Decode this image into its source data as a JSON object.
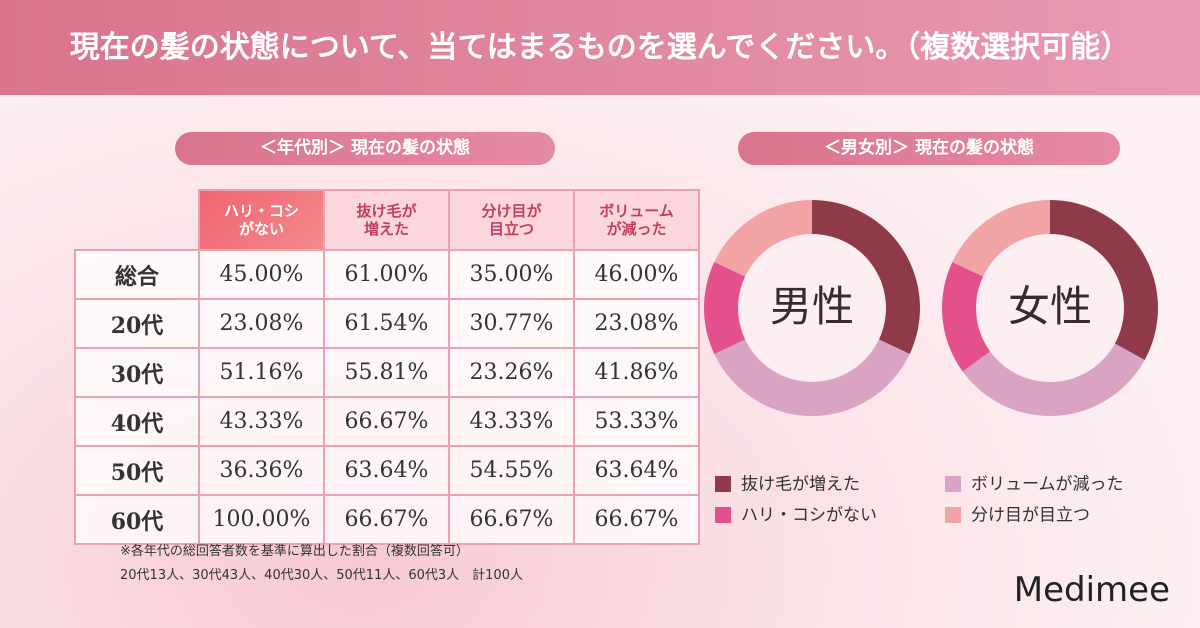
{
  "header": {
    "title": "現在の髪の状態について、当てはまるものを選んでください。（複数選択可能）"
  },
  "table": {
    "title": "＜年代別＞ 現在の髪の状態",
    "columns": [
      "ハリ・コシ\nがない",
      "抜け毛が\n増えた",
      "分け目が\n目立つ",
      "ボリューム\nが減った"
    ],
    "rows": [
      {
        "label": "総合",
        "cells": [
          "45.00%",
          "61.00%",
          "35.00%",
          "46.00%"
        ]
      },
      {
        "label": "20代",
        "cells": [
          "23.08%",
          "61.54%",
          "30.77%",
          "23.08%"
        ]
      },
      {
        "label": "30代",
        "cells": [
          "51.16%",
          "55.81%",
          "23.26%",
          "41.86%"
        ]
      },
      {
        "label": "40代",
        "cells": [
          "43.33%",
          "66.67%",
          "43.33%",
          "53.33%"
        ]
      },
      {
        "label": "50代",
        "cells": [
          "36.36%",
          "63.64%",
          "54.55%",
          "63.64%"
        ]
      },
      {
        "label": "60代",
        "cells": [
          "100.00%",
          "66.67%",
          "66.67%",
          "66.67%"
        ]
      }
    ],
    "notes": [
      "※各年代の総回答者数を基準に算出した割合（複数回答可）",
      "20代13人、30代43人、40代30人、50代11人、60代3人　計100人"
    ]
  },
  "chart_data": {
    "type": "pie",
    "title": "＜男女別＞ 現在の髪の状態",
    "categories": [
      "抜け毛が増えた",
      "ボリュームが減った",
      "ハリ・コシがない",
      "分け目が目立つ"
    ],
    "colors": [
      "#8e3a48",
      "#d9a3c3",
      "#e4508c",
      "#f2a3a6"
    ],
    "series": [
      {
        "name": "男性",
        "values": [
          32,
          36,
          14,
          18
        ]
      },
      {
        "name": "女性",
        "values": [
          33,
          32,
          17,
          18
        ]
      }
    ]
  },
  "brand": "Medimee"
}
